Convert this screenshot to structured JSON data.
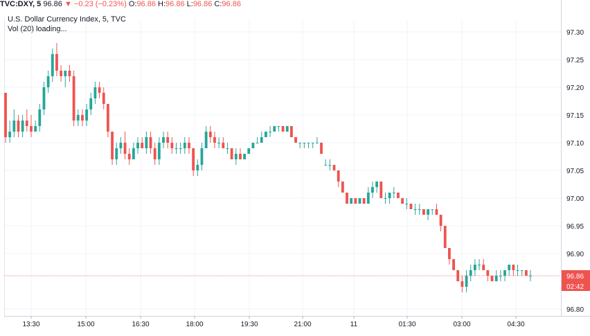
{
  "header": {
    "symbol": "TVC:DXY, 5",
    "last": "96.86",
    "arrow": "▼",
    "change": "−0.23 (−0.23%)",
    "o_label": "O:",
    "o_value": "96.86",
    "h_label": "H:",
    "h_value": "96.86",
    "l_label": "L:",
    "l_value": "96.86",
    "c_label": "C:",
    "c_value": "96.86"
  },
  "legend": {
    "title": "U.S. Dollar Currency Index, 5, TVC",
    "volume": "Vol (20) loading..."
  },
  "colors": {
    "up": "#26a69a",
    "down": "#ef5350",
    "grid": "#f0f3fa",
    "axis_text": "#131722",
    "price_line": "#ef5350"
  },
  "chart_data": {
    "type": "candlestick",
    "title": "U.S. Dollar Currency Index, 5, TVC",
    "y_ticks": [
      "97.30",
      "97.25",
      "97.20",
      "97.15",
      "97.10",
      "97.05",
      "97.00",
      "96.95",
      "96.90",
      "96.86",
      "96.80"
    ],
    "y_range": [
      96.79,
      97.32
    ],
    "x_ticks": [
      "13:30",
      "15:00",
      "16:30",
      "18:00",
      "19:30",
      "21:00",
      "11",
      "01:30",
      "03:00",
      "04:30"
    ],
    "last_price": "96.86",
    "countdown": "02:42",
    "grid": true,
    "candles": [
      [
        97.19,
        97.19,
        97.1,
        97.11
      ],
      [
        97.11,
        97.14,
        97.1,
        97.12
      ],
      [
        97.12,
        97.16,
        97.11,
        97.14
      ],
      [
        97.14,
        97.15,
        97.11,
        97.12
      ],
      [
        97.12,
        97.15,
        97.11,
        97.14
      ],
      [
        97.14,
        97.16,
        97.12,
        97.13
      ],
      [
        97.13,
        97.15,
        97.11,
        97.12
      ],
      [
        97.12,
        97.14,
        97.12,
        97.13
      ],
      [
        97.13,
        97.17,
        97.12,
        97.16
      ],
      [
        97.16,
        97.21,
        97.15,
        97.2
      ],
      [
        97.2,
        97.23,
        97.19,
        97.22
      ],
      [
        97.22,
        97.27,
        97.21,
        97.26
      ],
      [
        97.26,
        97.28,
        97.22,
        97.23
      ],
      [
        97.23,
        97.24,
        97.21,
        97.22
      ],
      [
        97.22,
        97.23,
        97.2,
        97.23
      ],
      [
        97.23,
        97.24,
        97.21,
        97.22
      ],
      [
        97.22,
        97.23,
        97.13,
        97.14
      ],
      [
        97.14,
        97.16,
        97.13,
        97.15
      ],
      [
        97.15,
        97.16,
        97.13,
        97.14
      ],
      [
        97.14,
        97.17,
        97.13,
        97.16
      ],
      [
        97.16,
        97.19,
        97.15,
        97.18
      ],
      [
        97.18,
        97.21,
        97.17,
        97.2
      ],
      [
        97.2,
        97.21,
        97.18,
        97.19
      ],
      [
        97.19,
        97.2,
        97.16,
        97.17
      ],
      [
        97.17,
        97.17,
        97.11,
        97.12
      ],
      [
        97.12,
        97.12,
        97.06,
        97.07
      ],
      [
        97.07,
        97.1,
        97.06,
        97.09
      ],
      [
        97.09,
        97.11,
        97.08,
        97.1
      ],
      [
        97.1,
        97.12,
        97.07,
        97.08
      ],
      [
        97.08,
        97.09,
        97.06,
        97.07
      ],
      [
        97.07,
        97.1,
        97.07,
        97.09
      ],
      [
        97.09,
        97.11,
        97.08,
        97.1
      ],
      [
        97.1,
        97.11,
        97.09,
        97.09
      ],
      [
        97.09,
        97.12,
        97.08,
        97.11
      ],
      [
        97.11,
        97.12,
        97.08,
        97.09
      ],
      [
        97.09,
        97.1,
        97.06,
        97.07
      ],
      [
        97.07,
        97.11,
        97.06,
        97.1
      ],
      [
        97.1,
        97.12,
        97.09,
        97.11
      ],
      [
        97.11,
        97.12,
        97.09,
        97.1
      ],
      [
        97.1,
        97.11,
        97.08,
        97.09
      ],
      [
        97.09,
        97.1,
        97.08,
        97.09
      ],
      [
        97.09,
        97.1,
        97.08,
        97.09
      ],
      [
        97.09,
        97.11,
        97.08,
        97.1
      ],
      [
        97.1,
        97.11,
        97.08,
        97.09
      ],
      [
        97.09,
        97.09,
        97.04,
        97.05
      ],
      [
        97.05,
        97.07,
        97.04,
        97.06
      ],
      [
        97.06,
        97.1,
        97.05,
        97.09
      ],
      [
        97.09,
        97.13,
        97.09,
        97.12
      ],
      [
        97.12,
        97.13,
        97.1,
        97.11
      ],
      [
        97.11,
        97.12,
        97.09,
        97.1
      ],
      [
        97.1,
        97.11,
        97.09,
        97.1
      ],
      [
        97.1,
        97.11,
        97.09,
        97.09
      ],
      [
        97.09,
        97.1,
        97.08,
        97.09
      ],
      [
        97.09,
        97.09,
        97.07,
        97.07
      ],
      [
        97.07,
        97.09,
        97.06,
        97.08
      ],
      [
        97.08,
        97.09,
        97.07,
        97.07
      ],
      [
        97.07,
        97.08,
        97.07,
        97.08
      ],
      [
        97.08,
        97.09,
        97.08,
        97.09
      ],
      [
        97.09,
        97.1,
        97.09,
        97.1
      ],
      [
        97.1,
        97.11,
        97.1,
        97.1
      ],
      [
        97.1,
        97.12,
        97.1,
        97.11
      ],
      [
        97.11,
        97.12,
        97.11,
        97.12
      ],
      [
        97.12,
        97.13,
        97.11,
        97.12
      ],
      [
        97.12,
        97.13,
        97.12,
        97.13
      ],
      [
        97.13,
        97.13,
        97.12,
        97.13
      ],
      [
        97.13,
        97.13,
        97.12,
        97.12
      ],
      [
        97.12,
        97.13,
        97.12,
        97.13
      ],
      [
        97.13,
        97.13,
        97.11,
        97.11
      ],
      [
        97.11,
        97.11,
        97.1,
        97.1
      ],
      [
        97.1,
        97.1,
        97.09,
        97.1
      ],
      [
        97.1,
        97.1,
        97.09,
        97.1
      ],
      [
        97.1,
        97.1,
        97.09,
        97.1
      ],
      [
        97.1,
        97.1,
        97.09,
        97.1
      ],
      [
        97.1,
        97.11,
        97.1,
        97.1
      ],
      [
        97.1,
        97.1,
        97.08,
        97.08
      ],
      [
        97.06,
        97.07,
        97.06,
        97.06
      ],
      [
        97.06,
        97.07,
        97.05,
        97.06
      ],
      [
        97.06,
        97.06,
        97.05,
        97.05
      ],
      [
        97.05,
        97.05,
        97.02,
        97.03
      ],
      [
        97.03,
        97.03,
        97.01,
        97.01
      ],
      [
        97.01,
        97.01,
        96.99,
        96.99
      ],
      [
        96.99,
        97.0,
        96.99,
        97.0
      ],
      [
        97.0,
        97.0,
        96.99,
        96.99
      ],
      [
        96.99,
        97.0,
        96.99,
        97.0
      ],
      [
        97.0,
        97.0,
        96.99,
        96.99
      ],
      [
        96.99,
        97.02,
        96.99,
        97.01
      ],
      [
        97.01,
        97.03,
        97.0,
        97.02
      ],
      [
        97.02,
        97.03,
        97.01,
        97.03
      ],
      [
        97.03,
        97.03,
        97.0,
        97.0
      ],
      [
        97.0,
        97.01,
        96.99,
        97.0
      ],
      [
        97.0,
        97.01,
        96.99,
        97.01
      ],
      [
        97.01,
        97.02,
        97.0,
        97.01
      ],
      [
        97.01,
        97.01,
        97.0,
        97.0
      ],
      [
        97.0,
        97.0,
        96.99,
        96.99
      ],
      [
        96.99,
        97.0,
        96.98,
        96.99
      ],
      [
        96.99,
        96.99,
        96.98,
        96.98
      ],
      [
        96.98,
        96.99,
        96.97,
        96.98
      ],
      [
        96.98,
        96.99,
        96.97,
        96.98
      ],
      [
        96.98,
        96.98,
        96.97,
        96.97
      ],
      [
        96.97,
        96.98,
        96.96,
        96.98
      ],
      [
        96.98,
        96.98,
        96.97,
        96.98
      ],
      [
        96.98,
        96.99,
        96.97,
        96.97
      ],
      [
        96.97,
        96.97,
        96.94,
        96.95
      ],
      [
        96.95,
        96.95,
        96.91,
        96.91
      ],
      [
        96.91,
        96.91,
        96.88,
        96.89
      ],
      [
        96.89,
        96.89,
        96.87,
        96.87
      ],
      [
        96.87,
        96.87,
        96.85,
        96.85
      ],
      [
        96.85,
        96.86,
        96.83,
        96.84
      ],
      [
        96.84,
        96.87,
        96.83,
        96.86
      ],
      [
        96.86,
        96.88,
        96.85,
        96.87
      ],
      [
        96.87,
        96.89,
        96.86,
        96.88
      ],
      [
        96.88,
        96.89,
        96.87,
        96.88
      ],
      [
        96.88,
        96.89,
        96.87,
        96.87
      ],
      [
        96.87,
        96.87,
        96.85,
        96.86
      ],
      [
        96.86,
        96.86,
        96.85,
        96.85
      ],
      [
        96.85,
        96.87,
        96.85,
        96.86
      ],
      [
        96.86,
        96.87,
        96.85,
        96.86
      ],
      [
        96.86,
        96.87,
        96.85,
        96.87
      ],
      [
        96.87,
        96.88,
        96.86,
        96.88
      ],
      [
        96.88,
        96.88,
        96.86,
        96.87
      ],
      [
        96.87,
        96.88,
        96.86,
        96.87
      ],
      [
        96.87,
        96.87,
        96.86,
        96.87
      ],
      [
        96.87,
        96.87,
        96.86,
        96.86
      ],
      [
        96.86,
        96.87,
        96.85,
        96.86
      ]
    ]
  }
}
